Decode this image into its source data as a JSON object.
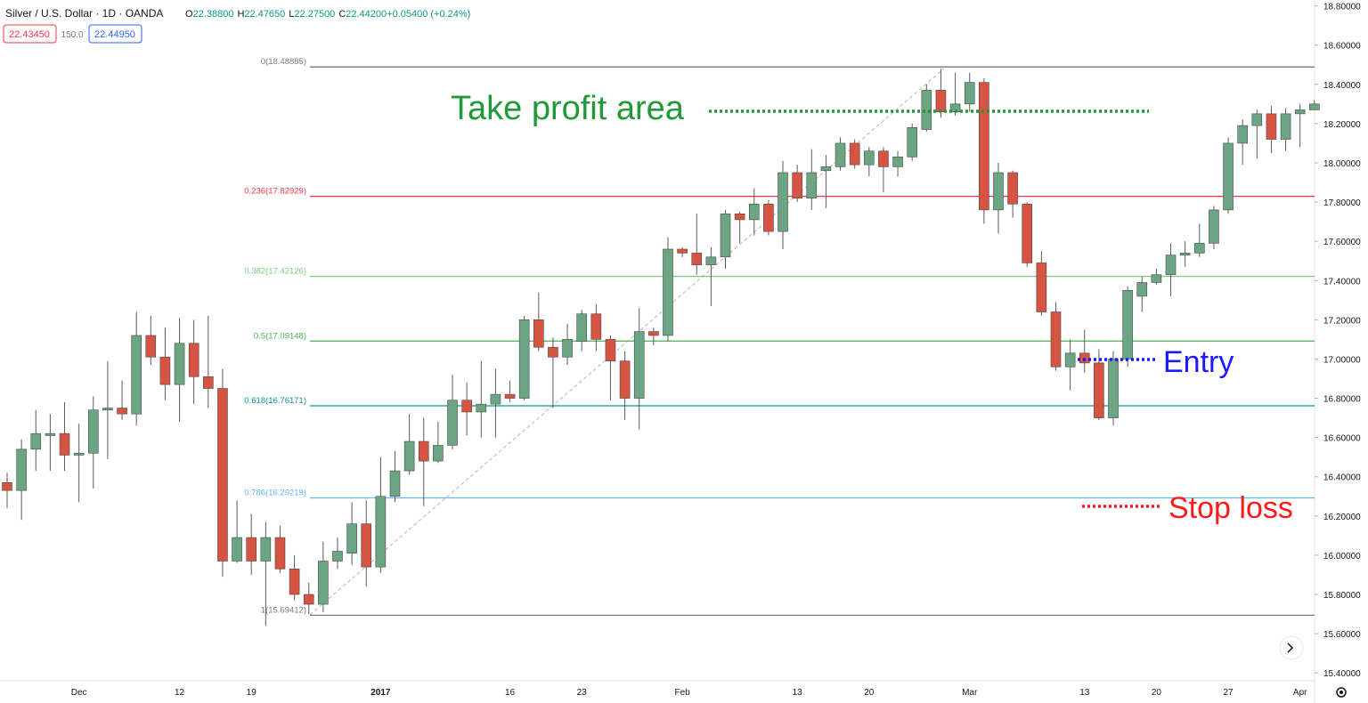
{
  "header": {
    "symbol": "Silver / U.S. Dollar · 1D · OANDA",
    "ohlc": [
      {
        "label": "O",
        "value": "22.38800"
      },
      {
        "label": "H",
        "value": "22.47650"
      },
      {
        "label": "L",
        "value": "22.27500"
      },
      {
        "label": "C",
        "value": "22.44200"
      },
      {
        "label": "",
        "value": "+0.05400 (+0.24%)"
      }
    ],
    "price_boxes": [
      "22.43450",
      "150.0",
      "22.44950"
    ]
  },
  "chart_data": {
    "type": "candlestick",
    "categories": [
      null,
      null,
      null,
      null,
      null,
      "Dec",
      null,
      null,
      null,
      null,
      null,
      null,
      "12",
      null,
      null,
      null,
      null,
      "19",
      null,
      null,
      null,
      null,
      null,
      null,
      null,
      null,
      "2017",
      null,
      null,
      null,
      null,
      null,
      null,
      null,
      null,
      "16",
      null,
      null,
      null,
      null,
      "23",
      null,
      null,
      null,
      null,
      null,
      null,
      "Feb",
      null,
      null,
      null,
      null,
      null,
      null,
      null,
      "13",
      null,
      null,
      null,
      null,
      "20",
      null,
      null,
      null,
      null,
      null,
      null,
      "Mar",
      null,
      null,
      null,
      null,
      null,
      null,
      null,
      "13",
      null,
      null,
      null,
      null,
      "20",
      null,
      null,
      null,
      null,
      "27",
      null,
      null,
      null,
      null,
      "Apr",
      null
    ],
    "open": [
      16.37,
      16.33,
      16.54,
      16.61,
      16.62,
      16.51,
      16.52,
      16.74,
      16.75,
      16.72,
      17.12,
      17.01,
      16.87,
      17.08,
      16.91,
      16.85,
      15.97,
      16.09,
      15.97,
      16.09,
      15.93,
      15.8,
      15.75,
      15.97,
      16.01,
      16.16,
      15.94,
      16.3,
      16.43,
      16.58,
      16.48,
      16.56,
      16.79,
      16.73,
      16.77,
      16.82,
      16.8,
      17.2,
      17.06,
      17.01,
      17.09,
      17.23,
      17.1,
      16.99,
      16.8,
      17.14,
      17.12,
      17.56,
      17.54,
      17.48,
      17.52,
      17.74,
      17.71,
      17.79,
      17.65,
      17.95,
      17.82,
      17.96,
      17.98,
      18.1,
      17.99,
      18.06,
      17.98,
      18.03,
      18.17,
      18.37,
      18.26,
      18.3,
      18.41,
      17.76,
      17.95,
      17.79,
      17.49,
      17.24,
      16.96,
      17.03,
      16.98,
      16.7,
      17.0,
      17.32,
      17.39,
      17.43,
      17.53,
      17.54,
      17.59,
      17.76,
      18.1,
      18.19,
      18.25,
      18.12,
      18.25,
      18.27
    ],
    "high": [
      16.42,
      16.59,
      16.74,
      16.72,
      16.78,
      16.67,
      16.81,
      16.99,
      16.89,
      17.24,
      17.22,
      17.16,
      17.21,
      17.2,
      17.22,
      16.95,
      16.28,
      16.21,
      16.17,
      16.15,
      16.0,
      15.86,
      16.07,
      16.09,
      16.27,
      16.28,
      16.5,
      16.53,
      16.72,
      16.7,
      16.68,
      16.92,
      16.88,
      16.99,
      16.95,
      16.89,
      17.22,
      17.34,
      17.11,
      17.18,
      17.25,
      17.28,
      17.12,
      17.04,
      17.26,
      17.16,
      17.62,
      17.57,
      17.74,
      17.57,
      17.76,
      17.75,
      17.87,
      17.81,
      18.01,
      17.99,
      18.07,
      18.04,
      18.13,
      18.12,
      18.08,
      18.08,
      18.06,
      18.2,
      18.4,
      18.48,
      18.46,
      18.46,
      18.43,
      18.0,
      17.96,
      17.8,
      17.55,
      17.29,
      17.1,
      17.15,
      17.05,
      17.04,
      17.37,
      17.42,
      17.46,
      17.59,
      17.6,
      17.69,
      17.78,
      18.13,
      18.22,
      18.27,
      18.29,
      18.28,
      18.3,
      18.32
    ],
    "low": [
      16.24,
      16.18,
      16.43,
      16.43,
      16.43,
      16.27,
      16.34,
      16.49,
      16.69,
      16.66,
      16.97,
      16.79,
      16.68,
      16.77,
      16.75,
      15.89,
      15.96,
      15.9,
      15.64,
      15.91,
      15.77,
      15.7,
      15.71,
      15.93,
      15.95,
      15.84,
      15.91,
      16.27,
      16.41,
      16.25,
      16.47,
      16.54,
      16.61,
      16.6,
      16.6,
      16.78,
      16.79,
      17.04,
      16.75,
      16.97,
      17.04,
      17.04,
      16.79,
      16.69,
      16.64,
      17.07,
      17.09,
      17.52,
      17.43,
      17.27,
      17.46,
      17.59,
      17.63,
      17.63,
      17.56,
      17.8,
      17.76,
      17.77,
      17.96,
      17.97,
      17.93,
      17.85,
      17.93,
      18.01,
      18.16,
      18.23,
      18.24,
      18.26,
      17.69,
      17.64,
      17.72,
      17.47,
      17.22,
      16.94,
      16.84,
      16.93,
      16.69,
      16.66,
      16.96,
      17.24,
      17.38,
      17.32,
      17.47,
      17.52,
      17.56,
      17.74,
      17.99,
      18.02,
      18.05,
      18.06,
      18.08,
      18.27
    ],
    "close": [
      16.33,
      16.54,
      16.62,
      16.62,
      16.51,
      16.52,
      16.74,
      16.75,
      16.72,
      17.12,
      17.01,
      16.87,
      17.08,
      16.91,
      16.85,
      15.97,
      16.09,
      15.97,
      16.09,
      15.93,
      15.8,
      15.75,
      15.97,
      16.02,
      16.16,
      15.94,
      16.3,
      16.43,
      16.58,
      16.48,
      16.56,
      16.79,
      16.73,
      16.77,
      16.82,
      16.8,
      17.2,
      17.06,
      17.01,
      17.1,
      17.23,
      17.1,
      16.99,
      16.8,
      17.14,
      17.12,
      17.56,
      17.54,
      17.48,
      17.52,
      17.74,
      17.71,
      17.79,
      17.65,
      17.95,
      17.82,
      17.95,
      17.98,
      18.1,
      17.99,
      18.06,
      17.98,
      18.03,
      18.18,
      18.37,
      18.26,
      18.3,
      18.41,
      17.76,
      17.95,
      17.79,
      17.49,
      17.24,
      16.96,
      17.03,
      16.98,
      16.7,
      17.0,
      17.35,
      17.39,
      17.43,
      17.53,
      17.54,
      17.59,
      17.76,
      18.1,
      18.19,
      18.25,
      18.12,
      18.25,
      18.27,
      18.3
    ],
    "up_color": "#6ba583",
    "down_color": "#d75442",
    "ylim": [
      15.36,
      18.83
    ],
    "yticks": [
      {
        "value": 15.4,
        "label": "15.40000"
      },
      {
        "value": 15.6,
        "label": "15.60000"
      },
      {
        "value": 15.8,
        "label": "15.80000"
      },
      {
        "value": 16.0,
        "label": "16.00000"
      },
      {
        "value": 16.2,
        "label": "16.20000"
      },
      {
        "value": 16.4,
        "label": "16.40000"
      },
      {
        "value": 16.6,
        "label": "16.60000"
      },
      {
        "value": 16.8,
        "label": "16.80000"
      },
      {
        "value": 17.0,
        "label": "17.00000"
      },
      {
        "value": 17.2,
        "label": "17.20000"
      },
      {
        "value": 17.4,
        "label": "17.40000"
      },
      {
        "value": 17.6,
        "label": "17.60000"
      },
      {
        "value": 17.8,
        "label": "17.80000"
      },
      {
        "value": 18.0,
        "label": "18.00000"
      },
      {
        "value": 18.2,
        "label": "18.20000"
      },
      {
        "value": 18.4,
        "label": "18.40000"
      },
      {
        "value": 18.6,
        "label": "18.60000"
      },
      {
        "value": 18.8,
        "label": "18.80000"
      }
    ],
    "grid": false,
    "fib_levels": [
      {
        "label": "0(18.48885)",
        "value": 18.48885,
        "color": "#787b86"
      },
      {
        "label": "0.236(17.82929)",
        "value": 17.82929,
        "color": "#f23645"
      },
      {
        "label": "0.382(17.42126)",
        "value": 17.42126,
        "color": "#81c784"
      },
      {
        "label": "0.5(17.09148)",
        "value": 17.09148,
        "color": "#4caf50"
      },
      {
        "label": "0.618(16.76171)",
        "value": 16.76171,
        "color": "#089981"
      },
      {
        "label": "0.786(16.29219)",
        "value": 16.29219,
        "color": "#64b5f6"
      },
      {
        "label": "1(15.69412)",
        "value": 15.69412,
        "color": "#787b86"
      }
    ],
    "annotations": [
      {
        "text": "Take profit area",
        "color": "#1f9a36"
      },
      {
        "text": "Entry",
        "color": "#1a1aff"
      },
      {
        "text": "Stop loss",
        "color": "#ff1a1a"
      }
    ]
  }
}
